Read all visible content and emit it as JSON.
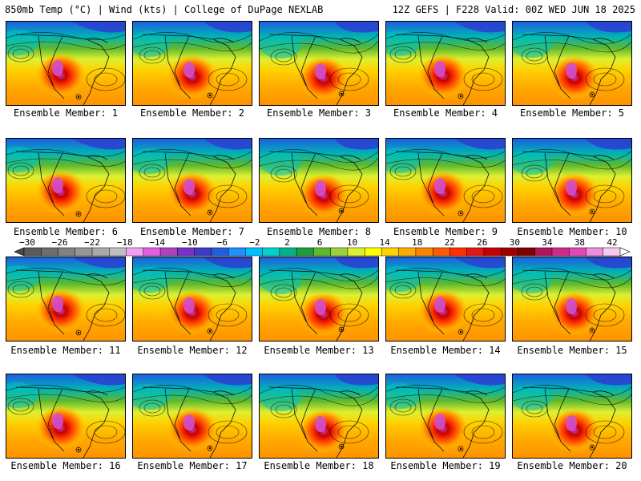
{
  "header": {
    "left": "850mb Temp (°C) | Wind (kts) | College of DuPage NEXLAB",
    "right": "12Z GEFS | F228 Valid: 00Z WED JUN 18 2025"
  },
  "members": [
    "Ensemble Member: 1",
    "Ensemble Member: 2",
    "Ensemble Member: 3",
    "Ensemble Member: 4",
    "Ensemble Member: 5",
    "Ensemble Member: 6",
    "Ensemble Member: 7",
    "Ensemble Member: 8",
    "Ensemble Member: 9",
    "Ensemble Member: 10",
    "Ensemble Member: 11",
    "Ensemble Member: 12",
    "Ensemble Member: 13",
    "Ensemble Member: 14",
    "Ensemble Member: 15",
    "Ensemble Member: 16",
    "Ensemble Member: 17",
    "Ensemble Member: 18",
    "Ensemble Member: 19",
    "Ensemble Member: 20"
  ],
  "colorbar": {
    "labels": [
      "−30",
      "−26",
      "−22",
      "−18",
      "−14",
      "−10",
      "−6",
      "−2",
      "2",
      "6",
      "10",
      "14",
      "18",
      "22",
      "26",
      "30",
      "34",
      "38",
      "42"
    ],
    "colors": [
      "#5a5a5a",
      "#6e6e6e",
      "#828282",
      "#969696",
      "#aaaaaa",
      "#bfbfbf",
      "#f2a0f2",
      "#e060e0",
      "#b040c0",
      "#7a2fc8",
      "#3c3cc8",
      "#1e5fe0",
      "#1e90ff",
      "#00bfff",
      "#00d2c8",
      "#00b488",
      "#1e9b3c",
      "#5fb92d",
      "#9bd23c",
      "#dcf032",
      "#ffff00",
      "#ffd200",
      "#ffaa00",
      "#ff8200",
      "#ff5a00",
      "#ff2d00",
      "#e61414",
      "#c80000",
      "#a00000",
      "#820000",
      "#b4145a",
      "#d2288c",
      "#e646b4",
      "#f08cdc",
      "#f7c8f0"
    ]
  }
}
